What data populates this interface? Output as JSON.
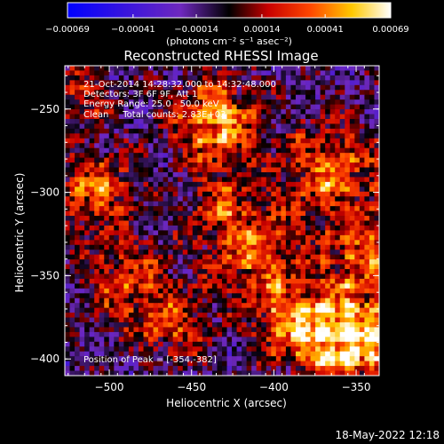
{
  "colorbar": {
    "tick_labels": [
      "−0.00069",
      "−0.00041",
      "−0.00014",
      "0.00014",
      "0.00041",
      "0.00069"
    ],
    "tick_values": [
      -0.00069,
      -0.00041,
      -0.00014,
      0.00014,
      0.00041,
      0.00069
    ],
    "unit_label": "(photons cm⁻² s⁻¹ asec⁻²)"
  },
  "plot": {
    "title": "Reconstructed RHESSI Image",
    "info_lines": [
      "21-Oct-2014 14:28:32.000 to 14:32:48.000",
      "Detectors: 3F 6F 9F, Att 1",
      "Energy Range: 25.0 - 50.0 keV",
      "Clean     Total counts: 2.83E+03"
    ],
    "peak_label": "Position of Peak = [-354,-382]",
    "xlabel": "Heliocentric X (arcsec)",
    "ylabel": "Heliocentric Y (arcsec)"
  },
  "footer": {
    "date": "18-May-2022 12:18"
  },
  "chart_data": {
    "type": "heatmap",
    "title": "Reconstructed RHESSI Image",
    "xlabel": "Heliocentric X (arcsec)",
    "ylabel": "Heliocentric Y (arcsec)",
    "xlim": [
      -527,
      -336
    ],
    "ylim": [
      -410,
      -224
    ],
    "x_ticks": [
      -500,
      -450,
      -400,
      -350
    ],
    "x_tick_labels": [
      "−500",
      "−450",
      "−400",
      "−350"
    ],
    "y_ticks": [
      -250,
      -300,
      -350,
      -400
    ],
    "y_tick_labels": [
      "−250",
      "−300",
      "−350",
      "−400"
    ],
    "colorscale_range": [
      -0.00069,
      0.00069
    ],
    "peak": {
      "x": -354,
      "y": -382
    }
  }
}
